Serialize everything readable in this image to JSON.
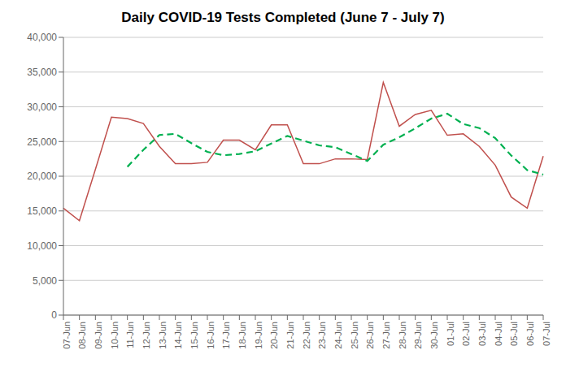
{
  "chart_data": {
    "type": "line",
    "title": "Daily COVID-19 Tests Completed (June 7 - July 7)",
    "categories": [
      "07-Jun",
      "08-Jun",
      "09-Jun",
      "10-Jun",
      "11-Jun",
      "12-Jun",
      "13-Jun",
      "14-Jun",
      "15-Jun",
      "16-Jun",
      "17-Jun",
      "18-Jun",
      "19-Jun",
      "20-Jun",
      "21-Jun",
      "22-Jun",
      "23-Jun",
      "24-Jun",
      "25-Jun",
      "26-Jun",
      "27-Jun",
      "28-Jun",
      "29-Jun",
      "30-Jun",
      "01-Jul",
      "02-Jul",
      "03-Jul",
      "04-Jul",
      "05-Jul",
      "06-Jul",
      "07-Jul"
    ],
    "series": [
      {
        "color": "#c0504d",
        "line_style": "solid",
        "values": [
          15400,
          13600,
          21000,
          28500,
          28300,
          27600,
          24300,
          21800,
          21800,
          22000,
          25200,
          25200,
          23800,
          27400,
          27400,
          21800,
          21800,
          22500,
          22500,
          22400,
          33500,
          27200,
          28900,
          29500,
          25900,
          26100,
          24300,
          21600,
          17000,
          15400,
          22900
        ]
      },
      {
        "color": "#00b050",
        "line_style": "dashed",
        "values": [
          null,
          null,
          null,
          null,
          21360,
          23800,
          25940,
          26100,
          24760,
          23500,
          23020,
          23200,
          23600,
          24720,
          25800,
          25120,
          24440,
          24180,
          23200,
          22200,
          24540,
          25620,
          26900,
          28300,
          29000,
          27520,
          26940,
          25480,
          22980,
          20880,
          20240
        ]
      }
    ],
    "ylim": [
      0,
      40000
    ],
    "yticks": [
      0,
      {
        "value": 5000,
        "label": "5,000"
      },
      {
        "value": 10000,
        "label": "10,000"
      },
      {
        "value": 15000,
        "label": "15,000"
      },
      {
        "value": 20000,
        "label": "20,000"
      },
      {
        "value": 25000,
        "label": "25,000"
      },
      {
        "value": 30000,
        "label": "30,000"
      },
      {
        "value": 35000,
        "label": "35,000"
      },
      {
        "value": 40000,
        "label": "40,000"
      }
    ],
    "grid": true
  }
}
